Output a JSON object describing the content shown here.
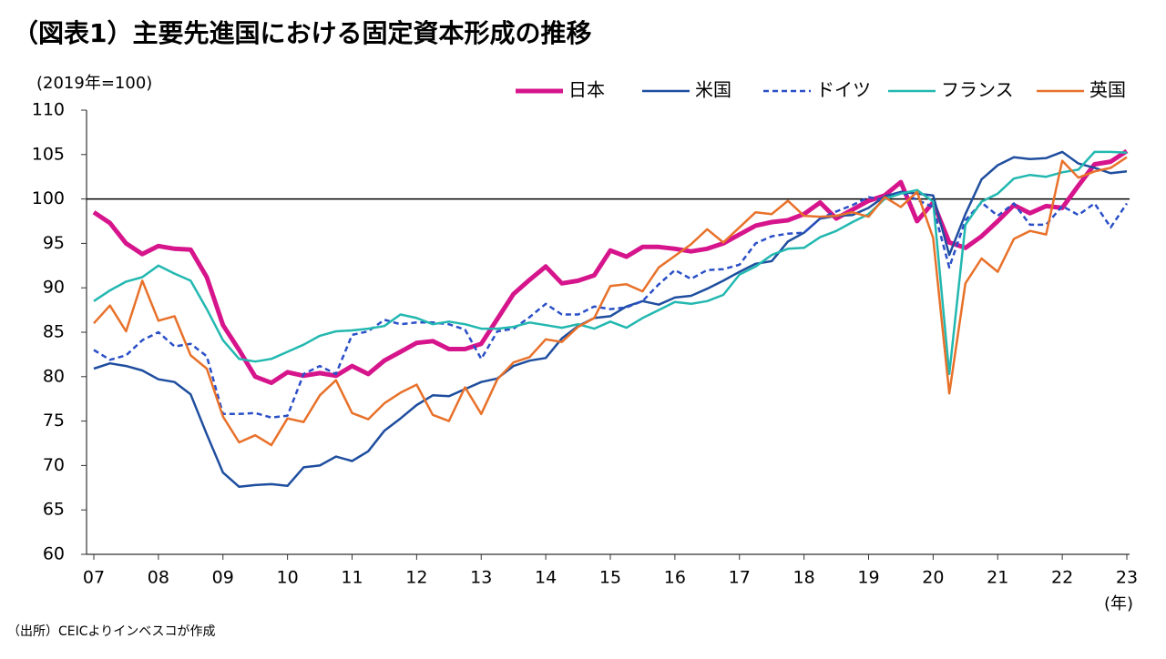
{
  "chart_data": {
    "type": "line",
    "title": "（図表1）主要先進国における固定資本形成の推移",
    "unit_label": "(2019年=100)",
    "x_unit_label": "(年)",
    "source": "（出所）CEICよりインベスコが作成",
    "categories": [
      "07",
      null,
      null,
      null,
      "08",
      null,
      null,
      null,
      "09",
      null,
      null,
      null,
      "10",
      null,
      null,
      null,
      "11",
      null,
      null,
      null,
      "12",
      null,
      null,
      null,
      "13",
      null,
      null,
      null,
      "14",
      null,
      null,
      null,
      "15",
      null,
      null,
      null,
      "16",
      null,
      null,
      null,
      "17",
      null,
      null,
      null,
      "18",
      null,
      null,
      null,
      "19",
      null,
      null,
      null,
      "20",
      null,
      null,
      null,
      "21",
      null,
      null,
      null,
      "22",
      null,
      null,
      null,
      "23"
    ],
    "ylim": [
      60,
      110
    ],
    "yticks": [
      60,
      65,
      70,
      75,
      80,
      85,
      90,
      95,
      100,
      105,
      110
    ],
    "hline": 100,
    "grid": false,
    "legend": "top-right",
    "series": [
      {
        "name": "日本",
        "color": "#d6158c",
        "width": 5,
        "dash": "solid",
        "values": [
          98.5,
          97.3,
          95,
          93.8,
          94.7,
          94.4,
          94.3,
          91.2,
          85.8,
          83,
          80,
          79.3,
          80.5,
          80.1,
          80.4,
          80.1,
          81.2,
          80.3,
          81.8,
          82.8,
          83.8,
          84,
          83.1,
          83.1,
          83.7,
          86.5,
          89.3,
          90.9,
          92.4,
          90.5,
          90.8,
          91.4,
          94.2,
          93.5,
          94.6,
          94.6,
          94.4,
          94.1,
          94.4,
          95,
          96,
          97,
          97.4,
          97.6,
          98.3,
          99.6,
          97.8,
          98.8,
          99.8,
          100.4,
          101.9,
          97.5,
          99.6,
          95.1,
          94.5,
          95.8,
          97.5,
          99.3,
          98.4,
          99.2,
          99,
          101.5,
          103.9,
          104.2,
          105.4
        ]
      },
      {
        "name": "米国",
        "color": "#1f4e9f",
        "width": 2.5,
        "dash": "solid",
        "values": [
          80.9,
          81.5,
          81.2,
          80.7,
          79.7,
          79.4,
          78,
          73.5,
          69.2,
          67.6,
          67.8,
          67.9,
          67.7,
          69.8,
          70,
          71,
          70.5,
          71.6,
          73.9,
          75.3,
          76.8,
          77.9,
          77.8,
          78.6,
          79.4,
          79.8,
          81.2,
          81.8,
          82.1,
          84.3,
          85.7,
          86.6,
          86.8,
          87.9,
          88.5,
          88.1,
          88.9,
          89.1,
          89.9,
          90.8,
          91.8,
          92.7,
          93,
          95.2,
          96.2,
          97.8,
          98.1,
          98.2,
          99,
          100.3,
          100.8,
          100.6,
          100.4,
          93.7,
          98.3,
          102.2,
          103.8,
          104.7,
          104.5,
          104.6,
          105.3,
          104,
          103.5,
          102.9,
          103.1
        ]
      },
      {
        "name": "ドイツ",
        "color": "#2a4fc7",
        "width": 2.5,
        "dash": "dashed",
        "values": [
          83,
          81.9,
          82.4,
          84.1,
          85,
          83.4,
          83.7,
          82.3,
          75.8,
          75.8,
          75.9,
          75.4,
          75.6,
          80.3,
          81.2,
          80.3,
          84.7,
          85.1,
          86.4,
          85.9,
          86.1,
          86.1,
          85.9,
          85.3,
          82,
          85.1,
          85.4,
          86.7,
          88.2,
          87,
          87,
          87.9,
          87.6,
          87.8,
          88.5,
          90.4,
          92,
          91,
          92,
          92.1,
          92.6,
          95,
          95.8,
          96.1,
          96.2,
          97.8,
          98.6,
          99.3,
          100.2,
          99.9,
          100.8,
          99.9,
          99.1,
          92.3,
          97.6,
          99.6,
          98.1,
          99.5,
          97.1,
          97.1,
          99.2,
          98.2,
          99.5,
          96.8,
          99.5
        ]
      },
      {
        "name": "フランス",
        "color": "#22b8b0",
        "width": 2.5,
        "dash": "solid",
        "values": [
          88.5,
          89.7,
          90.7,
          91.2,
          92.5,
          91.6,
          90.8,
          87.6,
          84.1,
          82,
          81.7,
          82,
          82.8,
          83.6,
          84.6,
          85.1,
          85.2,
          85.4,
          85.7,
          87,
          86.6,
          85.9,
          86.2,
          85.9,
          85.4,
          85.4,
          85.6,
          86.1,
          85.8,
          85.5,
          85.9,
          85.4,
          86.2,
          85.5,
          86.6,
          87.5,
          88.4,
          88.2,
          88.5,
          89.2,
          91.5,
          92.4,
          93.7,
          94.4,
          94.5,
          95.7,
          96.4,
          97.4,
          98.3,
          100,
          100.6,
          101,
          99.7,
          80.3,
          97.1,
          99.7,
          100.6,
          102.3,
          102.7,
          102.5,
          103,
          103.3,
          105.3,
          105.3,
          105.2
        ]
      },
      {
        "name": "英国",
        "color": "#e8712a",
        "width": 2.5,
        "dash": "solid",
        "values": [
          86,
          88,
          85.1,
          90.8,
          86.3,
          86.8,
          82.4,
          80.9,
          75.5,
          72.6,
          73.4,
          72.3,
          75.3,
          74.9,
          77.9,
          79.6,
          75.9,
          75.2,
          77,
          78.2,
          79.1,
          75.7,
          75,
          78.8,
          75.8,
          79.7,
          81.6,
          82.2,
          84.2,
          83.9,
          85.6,
          86.6,
          90.2,
          90.4,
          89.6,
          92.3,
          93.6,
          94.9,
          96.6,
          95.1,
          96.8,
          98.5,
          98.3,
          99.8,
          98.1,
          98,
          98.1,
          98.5,
          98,
          100.2,
          99.1,
          100.8,
          95.6,
          78.1,
          90.5,
          93.3,
          91.8,
          95.5,
          96.4,
          96,
          104.3,
          102.4,
          103.1,
          103.5,
          104.7
        ]
      }
    ]
  }
}
